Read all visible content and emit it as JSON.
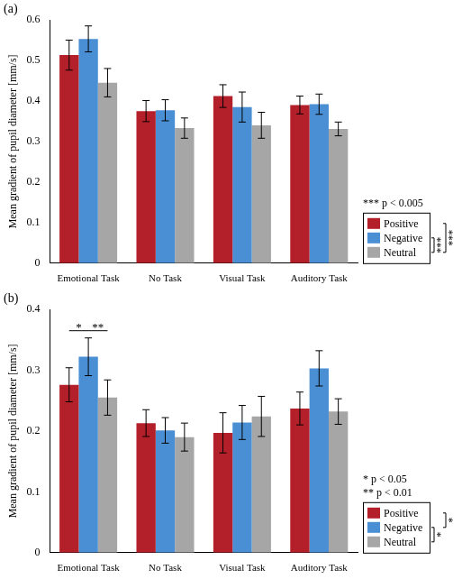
{
  "chart_data": [
    {
      "type": "bar",
      "title": "(a)",
      "y_label": "Mean gradient of pupil diameter [mm/s]",
      "categories": [
        "Emotional Task",
        "No Task",
        "Visual Task",
        "Auditory Task"
      ],
      "series": [
        {
          "name": "Positive",
          "color": "#b3202a",
          "values": [
            0.513,
            0.375,
            0.412,
            0.39
          ],
          "errors": [
            0.037,
            0.026,
            0.028,
            0.022
          ]
        },
        {
          "name": "Negative",
          "color": "#4a8fd4",
          "values": [
            0.553,
            0.377,
            0.385,
            0.392
          ],
          "errors": [
            0.032,
            0.026,
            0.037,
            0.025
          ]
        },
        {
          "name": "Neutral",
          "color": "#a6a6a6",
          "values": [
            0.445,
            0.333,
            0.34,
            0.331
          ],
          "errors": [
            0.035,
            0.025,
            0.032,
            0.017
          ]
        }
      ],
      "ylim": [
        0,
        0.6
      ],
      "yticks": [
        0,
        0.1,
        0.2,
        0.3,
        0.4,
        0.5,
        0.6
      ],
      "grid": false,
      "legend": "lower right",
      "significance": [],
      "legend_significance": [
        {
          "from": "Negative",
          "to": "Neutral",
          "label": "***"
        },
        {
          "from": "Positive",
          "to": "Neutral",
          "label": "***"
        }
      ],
      "significance_notes": [
        "*** p < 0.005"
      ]
    },
    {
      "type": "bar",
      "title": "(b)",
      "y_label": "Mean gradient of pupil diameter [mm/s]",
      "categories": [
        "Emotional Task",
        "No Task",
        "Visual Task",
        "Auditory Task"
      ],
      "series": [
        {
          "name": "Positive",
          "color": "#b3202a",
          "values": [
            0.276,
            0.213,
            0.197,
            0.237
          ],
          "errors": [
            0.028,
            0.022,
            0.033,
            0.027
          ]
        },
        {
          "name": "Negative",
          "color": "#4a8fd4",
          "values": [
            0.322,
            0.201,
            0.214,
            0.303
          ],
          "errors": [
            0.031,
            0.021,
            0.028,
            0.029
          ]
        },
        {
          "name": "Neutral",
          "color": "#a6a6a6",
          "values": [
            0.255,
            0.19,
            0.224,
            0.232
          ],
          "errors": [
            0.029,
            0.023,
            0.033,
            0.021
          ]
        }
      ],
      "ylim": [
        0,
        0.4
      ],
      "yticks": [
        0,
        0.1,
        0.2,
        0.3,
        0.4
      ],
      "grid": false,
      "legend": "lower right",
      "significance": [
        {
          "category": "Emotional Task",
          "from": "Positive",
          "to": "Negative",
          "label": "*"
        },
        {
          "category": "Emotional Task",
          "from": "Negative",
          "to": "Neutral",
          "label": "**"
        }
      ],
      "legend_significance": [
        {
          "from": "Negative",
          "to": "Neutral",
          "label": "*"
        },
        {
          "from": "Positive",
          "to": "Negative",
          "label": "*"
        }
      ],
      "significance_notes": [
        "* p < 0.05",
        "** p < 0.01"
      ]
    }
  ]
}
